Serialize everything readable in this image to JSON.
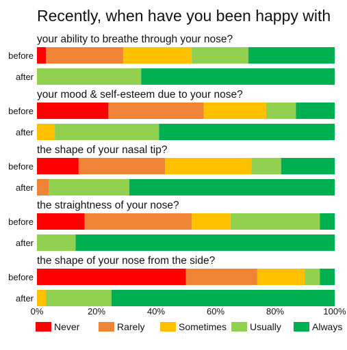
{
  "chart_data": {
    "type": "bar",
    "orientation": "horizontal",
    "stacked": true,
    "title": "Recently, when have you been happy with",
    "xlim": [
      0,
      100
    ],
    "x_ticks": [
      "0%",
      "20%",
      "40%",
      "60%",
      "80%",
      "100%"
    ],
    "legend_position": "bottom",
    "categories": [
      "Never",
      "Rarely",
      "Sometimes",
      "Usually",
      "Always"
    ],
    "colors": [
      "#ff0000",
      "#f08436",
      "#ffc000",
      "#92d050",
      "#00b050"
    ],
    "groups": [
      {
        "question": "your ability to breathe through your nose?",
        "rows": [
          {
            "label": "before",
            "values": [
              3,
              26,
              23,
              19,
              29
            ]
          },
          {
            "label": "after",
            "values": [
              0,
              0,
              0,
              35,
              65
            ]
          }
        ]
      },
      {
        "question": "your mood & self-esteem due to your nose?",
        "rows": [
          {
            "label": "before",
            "values": [
              24,
              32,
              21,
              10,
              13
            ]
          },
          {
            "label": "after",
            "values": [
              0,
              0,
              6,
              35,
              59
            ]
          }
        ]
      },
      {
        "question": "the shape of your nasal tip?",
        "rows": [
          {
            "label": "before",
            "values": [
              14,
              29,
              29,
              10,
              18
            ]
          },
          {
            "label": "after",
            "values": [
              0,
              4,
              0,
              27,
              69
            ]
          }
        ]
      },
      {
        "question": "the straightness of your nose?",
        "rows": [
          {
            "label": "before",
            "values": [
              16,
              36,
              13,
              30,
              5
            ]
          },
          {
            "label": "after",
            "values": [
              0,
              0,
              0,
              13,
              87
            ]
          }
        ]
      },
      {
        "question": "the shape of your nose from the side?",
        "rows": [
          {
            "label": "before",
            "values": [
              50,
              24,
              16,
              5,
              5
            ]
          },
          {
            "label": "after",
            "values": [
              0,
              0,
              3,
              22,
              75
            ]
          }
        ]
      }
    ]
  }
}
